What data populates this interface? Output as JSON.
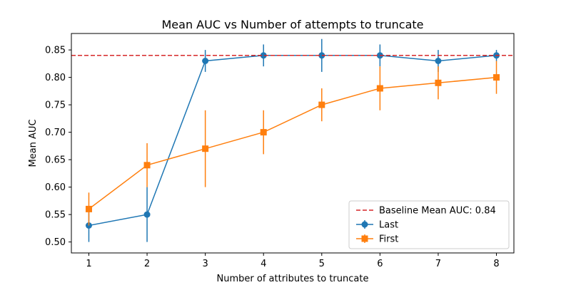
{
  "chart_data": {
    "type": "line",
    "title": "Mean AUC vs Number of attempts to truncate",
    "xlabel": "Number of attributes to truncate",
    "ylabel": "Mean AUC",
    "x": [
      1,
      2,
      3,
      4,
      5,
      6,
      7,
      8
    ],
    "xlim": [
      0.7,
      8.3
    ],
    "ylim": [
      0.48,
      0.88
    ],
    "xticks": [
      "1",
      "2",
      "3",
      "4",
      "5",
      "6",
      "7",
      "8"
    ],
    "yticks": [
      "0.50",
      "0.55",
      "0.60",
      "0.65",
      "0.70",
      "0.75",
      "0.80",
      "0.85"
    ],
    "grid": false,
    "legend_position": "lower-right",
    "baseline": {
      "label": "Baseline Mean AUC: 0.84",
      "value": 0.84,
      "color": "#d62728"
    },
    "series": [
      {
        "name": "Last",
        "marker": "circle",
        "color": "#1f77b4",
        "values": [
          0.53,
          0.55,
          0.83,
          0.84,
          0.84,
          0.84,
          0.83,
          0.84
        ],
        "error": [
          0.03,
          0.05,
          0.02,
          0.02,
          0.03,
          0.02,
          0.02,
          0.01
        ]
      },
      {
        "name": "First",
        "marker": "square",
        "color": "#ff7f0e",
        "values": [
          0.56,
          0.64,
          0.67,
          0.7,
          0.75,
          0.78,
          0.79,
          0.8
        ],
        "error": [
          0.03,
          0.04,
          0.07,
          0.04,
          0.03,
          0.04,
          0.03,
          0.03
        ]
      }
    ]
  }
}
